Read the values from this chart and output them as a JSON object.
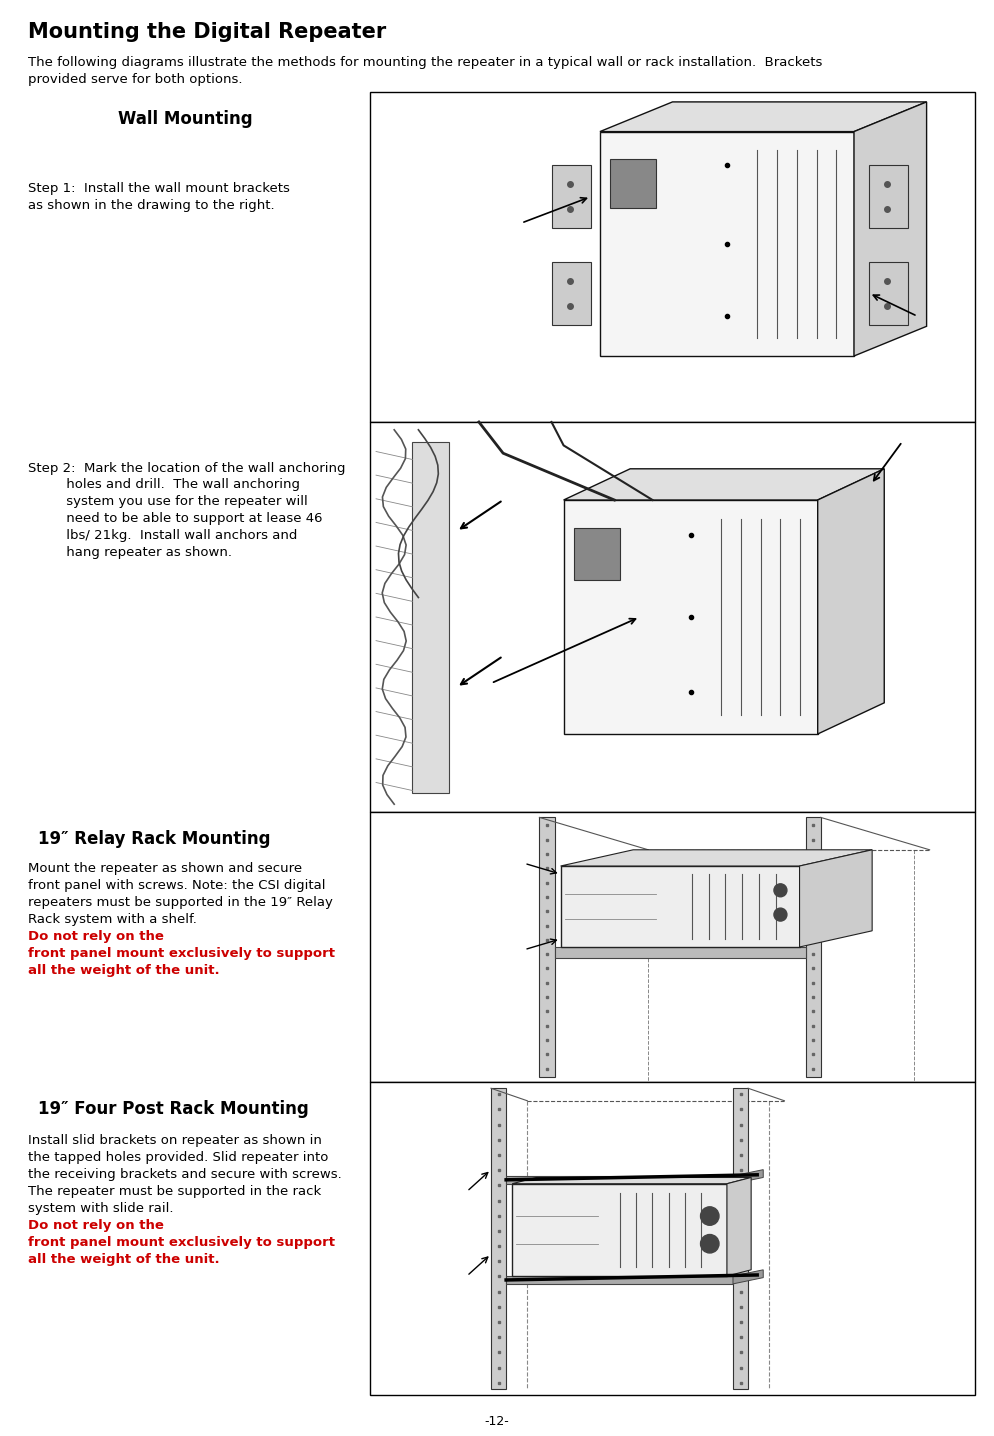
{
  "title": "Mounting the Digital Repeater",
  "intro_text": "The following diagrams illustrate the methods for mounting the repeater in a typical wall or rack installation.  Brackets\nprovided serve for both options.",
  "section1_heading": "Wall Mounting",
  "step1_text": "Step 1:  Install the wall mount brackets\nas shown in the drawing to the right.",
  "step2_label": "Step 2: ",
  "step2_indent": "Mark the location of the wall anchoring\n        holes and drill.  The wall anchoring\n        system you use for the repeater will\n        need to be able to support at lease 46 \n        lbs/ 21kg.  Install wall anchors and \n        hang repeater as shown.",
  "section2_heading": "19″ Relay Rack Mounting",
  "section2_text": "Mount the repeater as shown and secure\nfront panel with screws. Note: the CSI digital\nrepeaters must be supported in the 19″ Relay\nRack system with a shelf. ",
  "section2_bold": "Do not rely on the\nfront panel mount exclusively to support\nall the weight of the unit.",
  "section3_heading": "19″ Four Post Rack Mounting",
  "section3_text": "Install slid brackets on repeater as shown in\nthe tapped holes provided. Slid repeater into\nthe receiving brackets and secure with screws.\nThe repeater must be supported in the rack\nsystem with slide rail. ",
  "section3_bold": "Do not rely on the\nfront panel mount exclusively to support\nall the weight of the unit.",
  "page_number": "-12-",
  "bg_color": "#ffffff",
  "text_color": "#000000",
  "bold_red": "#cc0000",
  "border_color": "#000000",
  "title_fontsize": 15,
  "heading_fontsize": 12,
  "body_fontsize": 9.5,
  "page_num_fontsize": 9
}
